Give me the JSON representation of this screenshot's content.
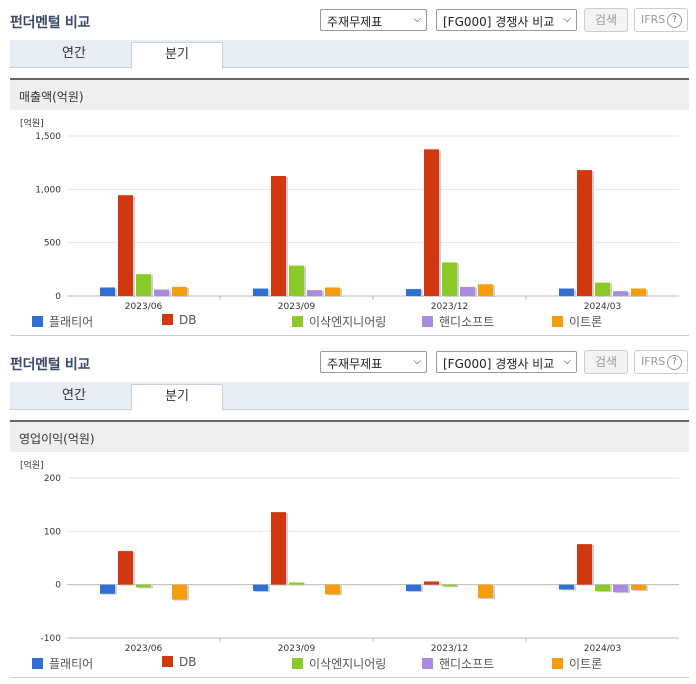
{
  "panels": [
    {
      "header": {
        "title": "펀더멘털 비교",
        "select_statement": "주재무제표",
        "select_peer": "[FG000] 경쟁사 비교",
        "search_label": "검색",
        "ifrs_label": "IFRS",
        "help_label": "?"
      },
      "tabs": [
        "연간",
        "분기"
      ],
      "active_tab": "분기",
      "section_title": "매출액(억원)",
      "unit_label": "[억원]",
      "chart_data": {
        "type": "bar",
        "title": "매출액(억원)",
        "ylabel": "[억원]",
        "ylim": [
          0,
          1500
        ],
        "yticks": [
          0,
          500,
          1000,
          1500
        ],
        "ytick_labels": [
          "0",
          "500",
          "1,000",
          "1,500"
        ],
        "categories": [
          "2023/06",
          "2023/09",
          "2023/12",
          "2024/03"
        ],
        "series": [
          {
            "name": "플래티어",
            "color": "#2f6fd6",
            "values": [
              80,
              70,
              65,
              70
            ]
          },
          {
            "name": "DB",
            "color": "#d2380f",
            "values": [
              945,
              1125,
              1375,
              1180
            ]
          },
          {
            "name": "이삭엔지니어링",
            "color": "#8ac926",
            "values": [
              205,
              285,
              315,
              125
            ]
          },
          {
            "name": "핸디소프트",
            "color": "#a98be0",
            "values": [
              60,
              55,
              85,
              45
            ]
          },
          {
            "name": "이트론",
            "color": "#f59d0f",
            "values": [
              85,
              80,
              110,
              70
            ]
          }
        ]
      }
    },
    {
      "header": {
        "title": "펀더멘털 비교",
        "select_statement": "주재무제표",
        "select_peer": "[FG000] 경쟁사 비교",
        "search_label": "검색",
        "ifrs_label": "IFRS",
        "help_label": "?"
      },
      "tabs": [
        "연간",
        "분기"
      ],
      "active_tab": "분기",
      "section_title": "영업이익(억원)",
      "unit_label": "[억원]",
      "chart_data": {
        "type": "bar",
        "title": "영업이익(억원)",
        "ylabel": "[억원]",
        "ylim": [
          -100,
          200
        ],
        "yticks": [
          -100,
          0,
          100,
          200
        ],
        "ytick_labels": [
          "-100",
          "0",
          "100",
          "200"
        ],
        "categories": [
          "2023/06",
          "2023/09",
          "2023/12",
          "2024/03"
        ],
        "series": [
          {
            "name": "플래티어",
            "color": "#2f6fd6",
            "values": [
              -17,
              -12,
              -12,
              -9
            ]
          },
          {
            "name": "DB",
            "color": "#d2380f",
            "values": [
              63,
              136,
              6,
              76
            ]
          },
          {
            "name": "이삭엔지니어링",
            "color": "#8ac926",
            "values": [
              -5,
              4,
              -3,
              -12
            ]
          },
          {
            "name": "핸디소프트",
            "color": "#a98be0",
            "values": [
              0,
              0,
              0,
              -14
            ]
          },
          {
            "name": "이트론",
            "color": "#f59d0f",
            "values": [
              -28,
              -18,
              -25,
              -10
            ]
          }
        ]
      }
    }
  ]
}
